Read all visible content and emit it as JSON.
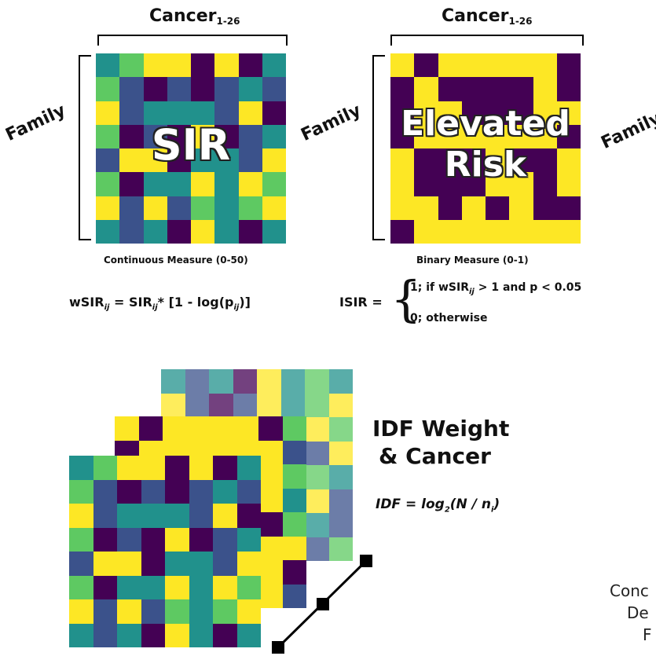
{
  "panel1": {
    "title": "Cancer",
    "title_sub": "1-26",
    "family_label": "Family",
    "overlay": "SIR",
    "caption": "Continuous Measure (0-50)",
    "formula": {
      "lhs": "wSIR",
      "lhs_sub": "ij",
      "eq": " = SIR",
      "mid_sub": "ij",
      "rest": "* [1 - log(p",
      "p_sub": "ij",
      "end": ")]"
    }
  },
  "panel2": {
    "title": "Cancer",
    "title_sub": "1-26",
    "family_label": "Family",
    "overlay_line1": "Elevated",
    "overlay_line2": "Risk",
    "caption": "Binary Measure (0-1)",
    "formula": {
      "lhs": "ISIR =",
      "case1_a": "1;  if wSIR",
      "case1_sub": "ij",
      "case1_b": " > 1 and p < 0.05",
      "case2": "0;  otherwise"
    }
  },
  "panel3_family_label": "Family",
  "idf": {
    "title_line1": "IDF Weight",
    "title_line2": "& Cancer",
    "formula_a": "IDF = log",
    "formula_sub1": "2",
    "formula_b": "(N / n",
    "formula_sub2": "i",
    "formula_c": ")"
  },
  "partial_text": {
    "line1": "Conc",
    "line2": "De",
    "line3": "F"
  },
  "colors": {
    "viridis_dark": "#440154",
    "viridis_blue": "#3b528b",
    "viridis_teal": "#21918c",
    "viridis_green": "#5ec962",
    "viridis_yellow": "#fde725"
  }
}
